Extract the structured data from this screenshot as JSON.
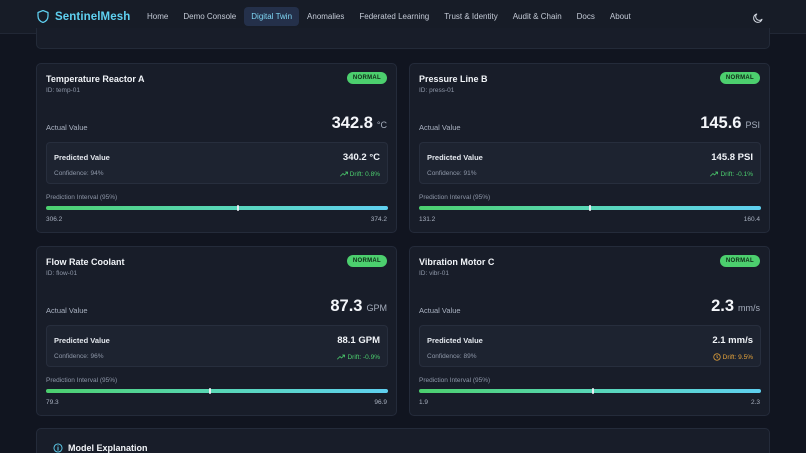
{
  "brand": {
    "name": "SentinelMesh",
    "icon": "shield-icon",
    "color": "#5fd0f0"
  },
  "nav": {
    "links": [
      "Home",
      "Demo Console",
      "Digital Twin",
      "Anomalies",
      "Federated Learning",
      "Trust & Identity",
      "Audit & Chain",
      "Docs",
      "About"
    ],
    "active": "Digital Twin",
    "theme_toggle_icon": "moon-icon"
  },
  "labels": {
    "actual": "Actual Value",
    "predicted": "Predicted Value",
    "interval": "Prediction Interval (95%)"
  },
  "sensors": [
    {
      "name": "Temperature Reactor A",
      "id": "ID: temp-01",
      "status": "NORMAL",
      "actual": "342.8",
      "unit": "°C",
      "predicted": "340.2 °C",
      "confidence": "Confidence: 94%",
      "drift": "Drift: 0.8%",
      "drift_status": "ok",
      "min": "306.2",
      "max": "374.2",
      "marker_fraction": 0.56
    },
    {
      "name": "Pressure Line B",
      "id": "ID: press-01",
      "status": "NORMAL",
      "actual": "145.6",
      "unit": "PSI",
      "predicted": "145.8 PSI",
      "confidence": "Confidence: 91%",
      "drift": "Drift: -0.1%",
      "drift_status": "ok",
      "min": "131.2",
      "max": "160.4",
      "marker_fraction": 0.5
    },
    {
      "name": "Flow Rate Coolant",
      "id": "ID: flow-01",
      "status": "NORMAL",
      "actual": "87.3",
      "unit": "GPM",
      "predicted": "88.1 GPM",
      "confidence": "Confidence: 96%",
      "drift": "Drift: -0.9%",
      "drift_status": "ok",
      "min": "79.3",
      "max": "96.9",
      "marker_fraction": 0.48
    },
    {
      "name": "Vibration Motor C",
      "id": "ID: vibr-01",
      "status": "NORMAL",
      "actual": "2.3",
      "unit": "mm/s",
      "predicted": "2.1 mm/s",
      "confidence": "Confidence: 89%",
      "drift": "Drift: 9.5%",
      "drift_status": "warn",
      "min": "1.9",
      "max": "2.3",
      "marker_fraction": 0.51
    }
  ],
  "bottom_panel": {
    "title": "Model Explanation",
    "icon": "info-icon"
  },
  "colors": {
    "normal": "#4ccf6e",
    "warning": "#e8a53c",
    "accent": "#5fd0f0",
    "background": "#111520",
    "card": "#181d29"
  }
}
